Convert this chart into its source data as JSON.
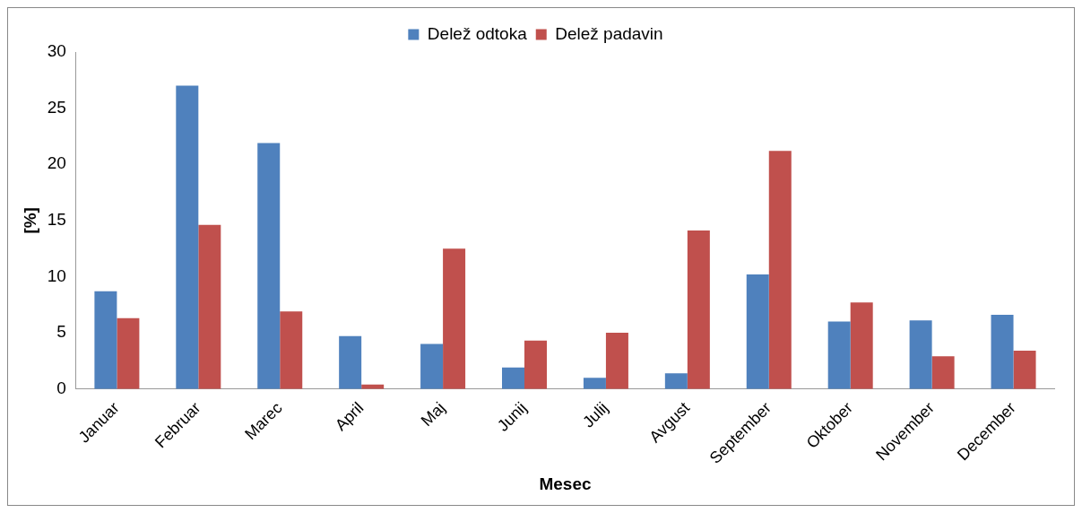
{
  "chart_data": {
    "type": "bar",
    "xlabel": "Mesec",
    "ylabel": "[%]",
    "categories": [
      "Januar",
      "Februar",
      "Marec",
      "April",
      "Maj",
      "Junij",
      "Julij",
      "Avgust",
      "September",
      "Oktober",
      "November",
      "December"
    ],
    "series": [
      {
        "name": "Delež odtoka",
        "color": "#4f81bd",
        "values": [
          8.7,
          27.0,
          21.9,
          4.7,
          4.0,
          1.9,
          1.0,
          1.4,
          10.2,
          6.0,
          6.1,
          6.6
        ]
      },
      {
        "name": "Delež padavin",
        "color": "#c0504d",
        "values": [
          6.3,
          14.6,
          6.9,
          0.4,
          12.5,
          4.3,
          5.0,
          14.1,
          21.2,
          7.7,
          2.9,
          3.4
        ]
      }
    ],
    "ylim": [
      0,
      30
    ],
    "yticks": [
      0,
      5,
      10,
      15,
      20,
      25,
      30
    ],
    "grid": false,
    "legend": "top"
  }
}
